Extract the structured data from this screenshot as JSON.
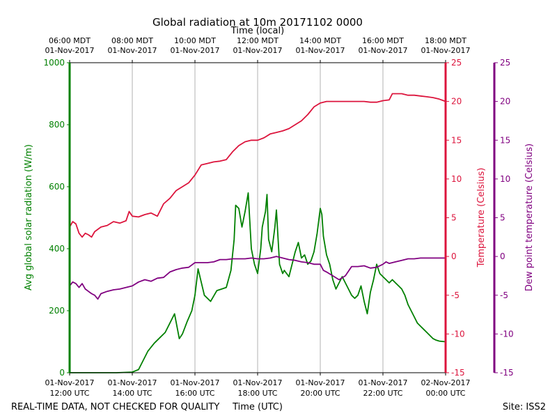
{
  "chart_data": {
    "type": "line",
    "title": "Global radiation at 10m 20171102 0000",
    "xlabel_top": "Time (local)",
    "xlabel_bottom": "Time (UTC)",
    "footer_left": "REAL-TIME DATA, NOT CHECKED FOR QUALITY",
    "footer_right": "Site: ISS2",
    "x_range": [
      12,
      24
    ],
    "top_ticks": [
      {
        "x": 12,
        "line1": "06:00 MDT",
        "line2": "01-Nov-2017"
      },
      {
        "x": 14,
        "line1": "08:00 MDT",
        "line2": "01-Nov-2017"
      },
      {
        "x": 16,
        "line1": "10:00 MDT",
        "line2": "01-Nov-2017"
      },
      {
        "x": 18,
        "line1": "12:00 MDT",
        "line2": "01-Nov-2017"
      },
      {
        "x": 20,
        "line1": "14:00 MDT",
        "line2": "01-Nov-2017"
      },
      {
        "x": 22,
        "line1": "16:00 MDT",
        "line2": "01-Nov-2017"
      },
      {
        "x": 24,
        "line1": "18:00 MDT",
        "line2": "01-Nov-2017"
      }
    ],
    "bottom_ticks": [
      {
        "x": 12,
        "line1": "01-Nov-2017",
        "line2": "12:00 UTC"
      },
      {
        "x": 14,
        "line1": "01-Nov-2017",
        "line2": "14:00 UTC"
      },
      {
        "x": 16,
        "line1": "01-Nov-2017",
        "line2": "16:00 UTC"
      },
      {
        "x": 18,
        "line1": "01-Nov-2017",
        "line2": "18:00 UTC"
      },
      {
        "x": 20,
        "line1": "01-Nov-2017",
        "line2": "20:00 UTC"
      },
      {
        "x": 22,
        "line1": "01-Nov-2017",
        "line2": "22:00 UTC"
      },
      {
        "x": 24,
        "line1": "02-Nov-2017",
        "line2": "00:00 UTC"
      }
    ],
    "axes": {
      "radiation": {
        "label": "Avg global solar radiation (W/m)",
        "ylim": [
          0,
          1000
        ],
        "ticks": [
          0,
          200,
          400,
          600,
          800,
          1000
        ],
        "color": "#008000"
      },
      "temperature": {
        "label": "Temperature (Celsius)",
        "ylim": [
          -15,
          25
        ],
        "ticks": [
          -15,
          -10,
          -5,
          0,
          5,
          10,
          15,
          20,
          25
        ],
        "color": "#dc143c"
      },
      "dewpoint": {
        "label": "Dew point temperature (Celsius)",
        "ylim": [
          -15,
          25
        ],
        "ticks": [
          -15,
          -10,
          -5,
          0,
          5,
          10,
          15,
          20,
          25
        ],
        "color": "#800080"
      }
    },
    "series": [
      {
        "name": "Avg global solar radiation",
        "axis": "radiation",
        "color": "#008000",
        "x": [
          12.0,
          12.5,
          13.0,
          13.5,
          14.0,
          14.2,
          14.3,
          14.5,
          14.7,
          14.9,
          15.05,
          15.2,
          15.35,
          15.5,
          15.6,
          15.75,
          15.9,
          16.0,
          16.1,
          16.3,
          16.5,
          16.7,
          16.85,
          17.0,
          17.15,
          17.25,
          17.3,
          17.4,
          17.5,
          17.6,
          17.7,
          17.8,
          17.9,
          18.0,
          18.1,
          18.15,
          18.25,
          18.3,
          18.35,
          18.45,
          18.55,
          18.6,
          18.7,
          18.8,
          18.85,
          19.0,
          19.1,
          19.2,
          19.3,
          19.4,
          19.5,
          19.6,
          19.7,
          19.8,
          19.9,
          20.0,
          20.05,
          20.1,
          20.2,
          20.3,
          20.4,
          20.5,
          20.6,
          20.7,
          20.8,
          20.9,
          21.0,
          21.1,
          21.2,
          21.3,
          21.4,
          21.5,
          21.6,
          21.7,
          21.8,
          21.9,
          22.0,
          22.1,
          22.2,
          22.3,
          22.4,
          22.5,
          22.6,
          22.7,
          22.8,
          22.9,
          23.0,
          23.1,
          23.2,
          23.3,
          23.4,
          23.5,
          23.6,
          23.7,
          23.8,
          23.9,
          24.0
        ],
        "values": [
          0,
          0,
          0,
          0,
          2,
          10,
          30,
          70,
          95,
          115,
          130,
          160,
          190,
          110,
          125,
          165,
          200,
          250,
          335,
          250,
          230,
          265,
          270,
          275,
          330,
          430,
          540,
          530,
          470,
          520,
          580,
          400,
          350,
          320,
          400,
          470,
          520,
          575,
          430,
          390,
          470,
          525,
          350,
          320,
          330,
          310,
          350,
          390,
          420,
          370,
          380,
          350,
          360,
          390,
          450,
          530,
          510,
          440,
          380,
          350,
          300,
          270,
          290,
          310,
          290,
          270,
          250,
          240,
          250,
          280,
          230,
          190,
          260,
          300,
          350,
          320,
          310,
          300,
          290,
          300,
          290,
          280,
          270,
          250,
          220,
          200,
          180,
          160,
          150,
          140,
          130,
          120,
          110,
          105,
          102,
          101,
          100
        ]
      },
      {
        "name": "Temperature",
        "axis": "temperature",
        "color": "#dc143c",
        "x": [
          12.0,
          12.1,
          12.2,
          12.3,
          12.4,
          12.5,
          12.6,
          12.7,
          12.8,
          13.0,
          13.2,
          13.4,
          13.6,
          13.8,
          13.9,
          14.0,
          14.2,
          14.4,
          14.6,
          14.8,
          15.0,
          15.2,
          15.4,
          15.6,
          15.8,
          16.0,
          16.2,
          16.4,
          16.6,
          16.8,
          17.0,
          17.2,
          17.4,
          17.6,
          17.8,
          18.0,
          18.2,
          18.4,
          18.6,
          18.8,
          19.0,
          19.2,
          19.4,
          19.6,
          19.8,
          20.0,
          20.2,
          20.4,
          20.6,
          20.8,
          21.0,
          21.2,
          21.4,
          21.6,
          21.8,
          22.0,
          22.2,
          22.3,
          22.4,
          22.6,
          22.8,
          23.0,
          23.2,
          23.4,
          23.6,
          23.8,
          24.0
        ],
        "values": [
          3.8,
          4.5,
          4.2,
          3.0,
          2.5,
          3.0,
          2.8,
          2.5,
          3.2,
          3.8,
          4.0,
          4.5,
          4.3,
          4.6,
          5.8,
          5.2,
          5.1,
          5.4,
          5.6,
          5.2,
          6.8,
          7.5,
          8.5,
          9.0,
          9.5,
          10.5,
          11.8,
          12.0,
          12.2,
          12.3,
          12.5,
          13.5,
          14.3,
          14.8,
          15.0,
          15.0,
          15.3,
          15.8,
          16.0,
          16.2,
          16.5,
          17.0,
          17.5,
          18.3,
          19.3,
          19.8,
          20.0,
          20.0,
          20.0,
          20.0,
          20.0,
          20.0,
          20.0,
          19.9,
          19.9,
          20.1,
          20.2,
          21.0,
          21.0,
          21.0,
          20.8,
          20.8,
          20.7,
          20.6,
          20.5,
          20.3,
          20.0
        ]
      },
      {
        "name": "Dew point temperature",
        "axis": "dewpoint",
        "color": "#800080",
        "x": [
          12.0,
          12.1,
          12.2,
          12.3,
          12.4,
          12.5,
          12.6,
          12.7,
          12.8,
          12.9,
          13.0,
          13.2,
          13.4,
          13.6,
          13.8,
          14.0,
          14.2,
          14.4,
          14.6,
          14.8,
          15.0,
          15.2,
          15.4,
          15.6,
          15.8,
          16.0,
          16.2,
          16.4,
          16.6,
          16.8,
          17.0,
          17.2,
          17.4,
          17.6,
          17.8,
          18.0,
          18.2,
          18.4,
          18.6,
          18.8,
          19.0,
          19.2,
          19.4,
          19.6,
          19.8,
          20.0,
          20.1,
          20.2,
          20.4,
          20.6,
          20.8,
          21.0,
          21.2,
          21.4,
          21.6,
          21.8,
          22.0,
          22.1,
          22.2,
          22.3,
          22.4,
          22.6,
          22.8,
          23.0,
          23.2,
          23.4,
          23.6,
          23.8,
          24.0
        ],
        "values": [
          -3.8,
          -3.3,
          -3.5,
          -4.0,
          -3.5,
          -4.2,
          -4.5,
          -4.8,
          -5.0,
          -5.5,
          -4.8,
          -4.5,
          -4.3,
          -4.2,
          -4.0,
          -3.8,
          -3.3,
          -3.0,
          -3.2,
          -2.8,
          -2.7,
          -2.0,
          -1.7,
          -1.5,
          -1.4,
          -0.8,
          -0.8,
          -0.8,
          -0.7,
          -0.4,
          -0.4,
          -0.3,
          -0.3,
          -0.3,
          -0.2,
          -0.3,
          -0.3,
          -0.2,
          0.0,
          -0.2,
          -0.4,
          -0.5,
          -0.7,
          -0.8,
          -1.0,
          -1.0,
          -1.8,
          -2.0,
          -2.5,
          -3.0,
          -2.5,
          -1.3,
          -1.3,
          -1.2,
          -1.5,
          -1.4,
          -1.0,
          -0.7,
          -0.9,
          -0.8,
          -0.7,
          -0.5,
          -0.3,
          -0.3,
          -0.2,
          -0.2,
          -0.2,
          -0.2,
          -0.2
        ]
      }
    ]
  }
}
